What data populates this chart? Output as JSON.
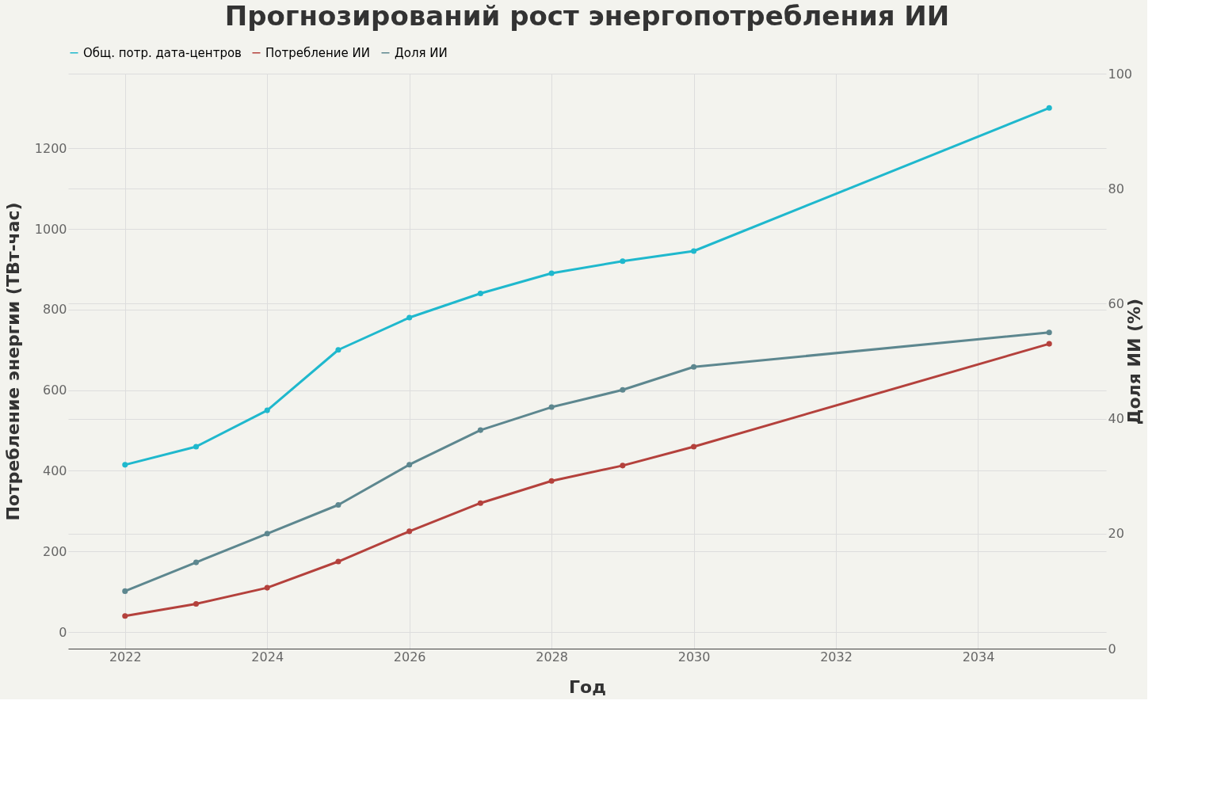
{
  "chart_data": {
    "type": "line",
    "title": "Прогнозирований рост  энергопотребления ИИ",
    "xlabel": "Год",
    "ylabel": "Потребление энергии (ТВт-час)",
    "y2label": "Доля ИИ (%)",
    "x": [
      2022,
      2023,
      2024,
      2025,
      2026,
      2027,
      2028,
      2029,
      2030,
      2035
    ],
    "series": [
      {
        "name": "Общ. потр. дата-центров",
        "color": "#1fb8cd",
        "values": [
          415,
          460,
          550,
          700,
          780,
          840,
          890,
          920,
          945,
          1300
        ]
      },
      {
        "name": "Потребление ИИ",
        "color": "#b4413c",
        "values": [
          40,
          70,
          110,
          175,
          250,
          320,
          375,
          413,
          460,
          715
        ]
      },
      {
        "name": "Доля ИИ",
        "color": "#5d878f",
        "axis": "y2",
        "values": [
          10,
          15,
          20,
          25,
          32,
          38,
          42,
          45,
          49,
          55
        ]
      }
    ],
    "xlim": [
      2021.2,
      2035.8
    ],
    "xticks": [
      2022,
      2024,
      2026,
      2028,
      2030,
      2032,
      2034
    ],
    "ylim": [
      -41,
      1385
    ],
    "yticks": [
      0,
      200,
      400,
      600,
      800,
      1000,
      1200
    ],
    "y2lim": [
      0,
      100
    ],
    "y2ticks": [
      0,
      20,
      40,
      60,
      80,
      100
    ],
    "grid": true,
    "legend": "top",
    "marker": "circle",
    "line_style": "solid"
  }
}
